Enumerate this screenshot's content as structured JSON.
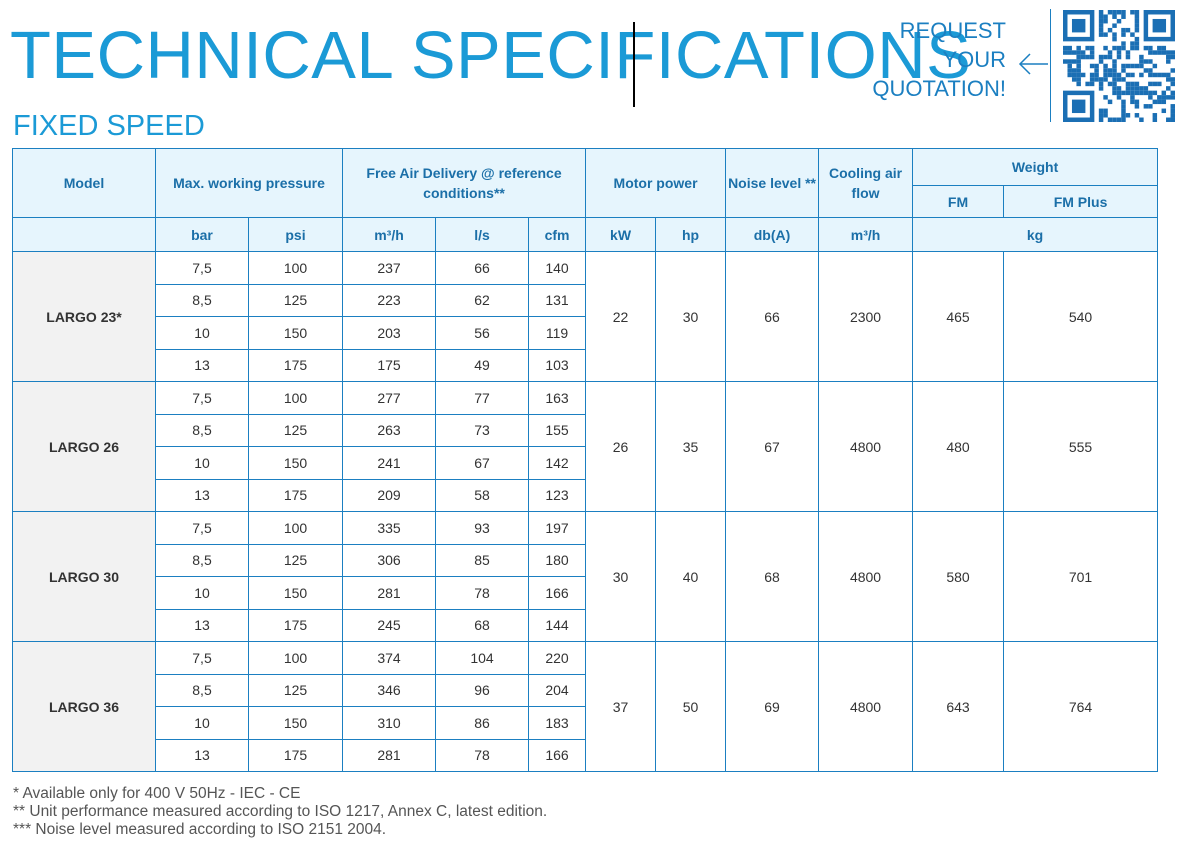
{
  "title": "TECHNICAL SPECIFICATIONS",
  "subtitle": "FIXED SPEED",
  "quotation": [
    "REQUEST",
    "YOUR",
    "QUOTATION!"
  ],
  "qr_icon": "qr-code-icon",
  "table": {
    "headers": {
      "model": "Model",
      "pressure": "Max. working pressure",
      "fad": "Free Air Delivery @ reference conditions**",
      "motor": "Motor power",
      "noise": "Noise level **",
      "cooling": "Cooling air flow",
      "weight": "Weight",
      "fm": "FM",
      "fm_plus": "FM Plus"
    },
    "units": {
      "bar": "bar",
      "psi": "psi",
      "m3h": "m³/h",
      "ls": "l/s",
      "cfm": "cfm",
      "kw": "kW",
      "hp": "hp",
      "db": "db(A)",
      "cool": "m³/h",
      "kg": "kg"
    },
    "models": [
      {
        "name": "LARGO 23*",
        "rows": [
          {
            "bar": "7,5",
            "psi": "100",
            "m3h": "237",
            "ls": "66",
            "cfm": "140"
          },
          {
            "bar": "8,5",
            "psi": "125",
            "m3h": "223",
            "ls": "62",
            "cfm": "131"
          },
          {
            "bar": "10",
            "psi": "150",
            "m3h": "203",
            "ls": "56",
            "cfm": "119"
          },
          {
            "bar": "13",
            "psi": "175",
            "m3h": "175",
            "ls": "49",
            "cfm": "103"
          }
        ],
        "kw": "22",
        "hp": "30",
        "noise": "66",
        "cooling": "2300",
        "fm": "465",
        "fm_plus": "540"
      },
      {
        "name": "LARGO 26",
        "rows": [
          {
            "bar": "7,5",
            "psi": "100",
            "m3h": "277",
            "ls": "77",
            "cfm": "163"
          },
          {
            "bar": "8,5",
            "psi": "125",
            "m3h": "263",
            "ls": "73",
            "cfm": "155"
          },
          {
            "bar": "10",
            "psi": "150",
            "m3h": "241",
            "ls": "67",
            "cfm": "142"
          },
          {
            "bar": "13",
            "psi": "175",
            "m3h": "209",
            "ls": "58",
            "cfm": "123"
          }
        ],
        "kw": "26",
        "hp": "35",
        "noise": "67",
        "cooling": "4800",
        "fm": "480",
        "fm_plus": "555"
      },
      {
        "name": "LARGO 30",
        "rows": [
          {
            "bar": "7,5",
            "psi": "100",
            "m3h": "335",
            "ls": "93",
            "cfm": "197"
          },
          {
            "bar": "8,5",
            "psi": "125",
            "m3h": "306",
            "ls": "85",
            "cfm": "180"
          },
          {
            "bar": "10",
            "psi": "150",
            "m3h": "281",
            "ls": "78",
            "cfm": "166"
          },
          {
            "bar": "13",
            "psi": "175",
            "m3h": "245",
            "ls": "68",
            "cfm": "144"
          }
        ],
        "kw": "30",
        "hp": "40",
        "noise": "68",
        "cooling": "4800",
        "fm": "580",
        "fm_plus": "701"
      },
      {
        "name": "LARGO 36",
        "rows": [
          {
            "bar": "7,5",
            "psi": "100",
            "m3h": "374",
            "ls": "104",
            "cfm": "220"
          },
          {
            "bar": "8,5",
            "psi": "125",
            "m3h": "346",
            "ls": "96",
            "cfm": "204"
          },
          {
            "bar": "10",
            "psi": "150",
            "m3h": "310",
            "ls": "86",
            "cfm": "183"
          },
          {
            "bar": "13",
            "psi": "175",
            "m3h": "281",
            "ls": "78",
            "cfm": "166"
          }
        ],
        "kw": "37",
        "hp": "50",
        "noise": "69",
        "cooling": "4800",
        "fm": "643",
        "fm_plus": "764"
      }
    ]
  },
  "footnotes": [
    "* Available only for 400 V 50Hz - IEC - CE",
    "** Unit performance measured according to ISO 1217, Annex C, latest edition.",
    "*** Noise level measured according to ISO 2151 2004."
  ],
  "colors": {
    "accent": "#1b9ad6",
    "border": "#1b7fc1",
    "header_bg": "#e6f5fd",
    "model_bg": "#f2f2f2"
  }
}
